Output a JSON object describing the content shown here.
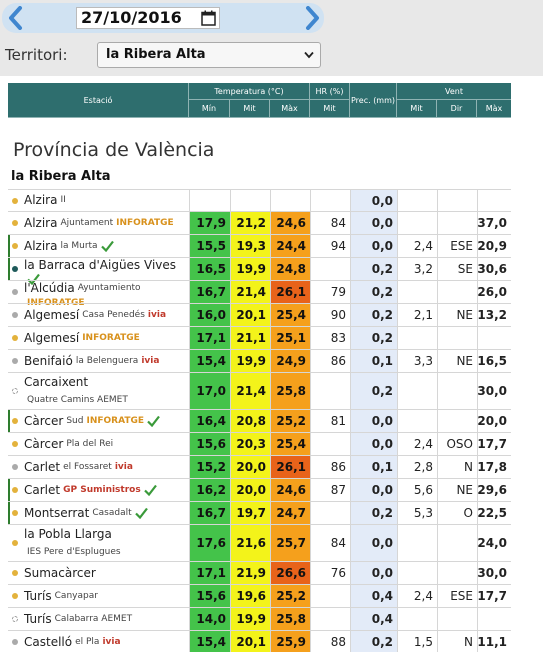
{
  "controls": {
    "date": "27/10/2016",
    "territori_label": "Territori:",
    "territori_value": "la Ribera Alta"
  },
  "header": {
    "estacio": "Estació",
    "temperatura": "Temperatura (°C)",
    "hr": "HR (%)",
    "prec": "Prec. (mm)",
    "vent": "Vent",
    "min": "Mín",
    "mit": "Mit",
    "max": "Màx",
    "hr_mit": "Mit",
    "vent_mit": "Mit",
    "vent_dir": "Dir",
    "vent_max": "Màx"
  },
  "province": "Província de València",
  "region": "la Ribera Alta",
  "colors": {
    "min": "#44c34a",
    "mit": "#f3f31a",
    "max_warm": "#f5a01c",
    "max_hot": "#e8631a",
    "prec": "#e3ebf8"
  },
  "rows": [
    {
      "name": "Alzira",
      "sub": "II",
      "tag": "",
      "tag_color": "",
      "check": false,
      "dot": "#e3b23c",
      "mark": "",
      "h": 22,
      "min": "",
      "mit": "",
      "max": "",
      "hot": false,
      "hr": "",
      "prec": "0,0",
      "vmit": "",
      "vdir": "",
      "vmax": ""
    },
    {
      "name": "Alzira",
      "sub": "Ajuntament",
      "tag": "INFORATGE",
      "tag_color": "#d8911c",
      "check": false,
      "dot": "#e3b23c",
      "mark": "",
      "h": 23,
      "min": "17,9",
      "mit": "21,2",
      "max": "24,6",
      "hot": false,
      "hr": "84",
      "prec": "0,0",
      "vmit": "",
      "vdir": "",
      "vmax": "37,0"
    },
    {
      "name": "Alzira",
      "sub": "la Murta",
      "tag": "",
      "tag_color": "",
      "check": true,
      "dot": "#e3b23c",
      "mark": "#2e7d2e",
      "h": 23,
      "min": "15,5",
      "mit": "19,3",
      "max": "24,4",
      "hot": false,
      "hr": "94",
      "prec": "0,0",
      "vmit": "2,4",
      "vdir": "ESE",
      "vmax": "20,9"
    },
    {
      "name": "la Barraca d'Aigües Vives",
      "sub": "",
      "tag": "",
      "tag_color": "",
      "check": true,
      "dot": "#1e5a5a",
      "mark": "#2e7d2e",
      "h": 23,
      "min": "16,5",
      "mit": "19,9",
      "max": "24,8",
      "hot": false,
      "hr": "",
      "prec": "0,2",
      "vmit": "3,2",
      "vdir": "SE",
      "vmax": "30,6"
    },
    {
      "name": "l'Alcúdia",
      "sub": "Ayuntamiento",
      "tag": "INFORATGE",
      "tag_color": "#d8911c",
      "check": false,
      "dot": "#aaaaaa",
      "mark": "",
      "h": 23,
      "min": "16,7",
      "mit": "21,4",
      "max": "26,1",
      "hot": true,
      "hr": "79",
      "prec": "0,2",
      "vmit": "",
      "vdir": "",
      "vmax": "26,0"
    },
    {
      "name": "Algemesí",
      "sub": "Casa Penedés",
      "tag": "ivia",
      "tag_color": "#c0392b",
      "check": false,
      "dot": "#aaaaaa",
      "mark": "",
      "h": 23,
      "min": "16,0",
      "mit": "20,1",
      "max": "25,4",
      "hot": false,
      "hr": "90",
      "prec": "0,2",
      "vmit": "2,1",
      "vdir": "NE",
      "vmax": "13,2"
    },
    {
      "name": "Algemesí",
      "sub": "",
      "tag": "INFORATGE",
      "tag_color": "#d8911c",
      "check": false,
      "dot": "#e3b23c",
      "mark": "",
      "h": 23,
      "min": "17,1",
      "mit": "21,1",
      "max": "25,1",
      "hot": false,
      "hr": "83",
      "prec": "0,2",
      "vmit": "",
      "vdir": "",
      "vmax": ""
    },
    {
      "name": "Benifaió",
      "sub": "la Belenguera",
      "tag": "ivia",
      "tag_color": "#c0392b",
      "check": false,
      "dot": "#aaaaaa",
      "mark": "",
      "h": 23,
      "min": "15,4",
      "mit": "19,9",
      "max": "24,9",
      "hot": false,
      "hr": "86",
      "prec": "0,1",
      "vmit": "3,3",
      "vdir": "NE",
      "vmax": "16,5"
    },
    {
      "name": "Carcaixent",
      "sub": "Quatre Camins AEMET",
      "tag": "",
      "tag_color": "",
      "check": false,
      "dot": "#ffffff",
      "mark": "",
      "h": 37,
      "min": "17,0",
      "mit": "21,4",
      "max": "25,8",
      "hot": false,
      "hr": "",
      "prec": "0,2",
      "vmit": "",
      "vdir": "",
      "vmax": "30,0"
    },
    {
      "name": "Càrcer",
      "sub": "Sud",
      "tag": "INFORATGE",
      "tag_color": "#d8911c",
      "check": true,
      "dot": "#e3b23c",
      "mark": "#2e7d2e",
      "h": 23,
      "min": "16,4",
      "mit": "20,8",
      "max": "25,2",
      "hot": false,
      "hr": "81",
      "prec": "0,0",
      "vmit": "",
      "vdir": "",
      "vmax": "20,0"
    },
    {
      "name": "Càrcer",
      "sub": "Pla del Rei",
      "tag": "",
      "tag_color": "",
      "check": false,
      "dot": "#e3b23c",
      "mark": "",
      "h": 23,
      "min": "15,6",
      "mit": "20,3",
      "max": "25,4",
      "hot": false,
      "hr": "",
      "prec": "0,0",
      "vmit": "2,4",
      "vdir": "OSO",
      "vmax": "17,7"
    },
    {
      "name": "Carlet",
      "sub": "el Fossaret",
      "tag": "ivia",
      "tag_color": "#c0392b",
      "check": false,
      "dot": "#aaaaaa",
      "mark": "",
      "h": 23,
      "min": "15,2",
      "mit": "20,0",
      "max": "26,1",
      "hot": true,
      "hr": "86",
      "prec": "0,1",
      "vmit": "2,8",
      "vdir": "N",
      "vmax": "17,8"
    },
    {
      "name": "Carlet",
      "sub": "",
      "tag": "GP Suministros",
      "tag_color": "#c0392b",
      "check": true,
      "dot": "#e3b23c",
      "mark": "#2e7d2e",
      "h": 23,
      "min": "16,2",
      "mit": "20,0",
      "max": "24,6",
      "hot": false,
      "hr": "87",
      "prec": "0,0",
      "vmit": "5,6",
      "vdir": "NE",
      "vmax": "29,6"
    },
    {
      "name": "Montserrat",
      "sub": "Casadalt",
      "tag": "",
      "tag_color": "",
      "check": true,
      "dot": "#e3b23c",
      "mark": "#2e7d2e",
      "h": 23,
      "min": "16,7",
      "mit": "19,7",
      "max": "24,7",
      "hot": false,
      "hr": "",
      "prec": "0,2",
      "vmit": "5,3",
      "vdir": "O",
      "vmax": "22,5"
    },
    {
      "name": "la Pobla Llarga",
      "sub": "IES Pere d'Esplugues",
      "tag": "",
      "tag_color": "",
      "check": false,
      "dot": "#e3b23c",
      "mark": "",
      "h": 37,
      "min": "17,6",
      "mit": "21,6",
      "max": "25,7",
      "hot": false,
      "hr": "84",
      "prec": "0,0",
      "vmit": "",
      "vdir": "",
      "vmax": "24,0"
    },
    {
      "name": "Sumacàrcer",
      "sub": "",
      "tag": "",
      "tag_color": "",
      "check": false,
      "dot": "#e3b23c",
      "mark": "",
      "h": 23,
      "min": "17,1",
      "mit": "21,9",
      "max": "26,6",
      "hot": true,
      "hr": "76",
      "prec": "0,0",
      "vmit": "",
      "vdir": "",
      "vmax": "30,0"
    },
    {
      "name": "Turís",
      "sub": "Canyapar",
      "tag": "",
      "tag_color": "",
      "check": false,
      "dot": "#e3b23c",
      "mark": "",
      "h": 23,
      "min": "15,6",
      "mit": "19,6",
      "max": "25,2",
      "hot": false,
      "hr": "",
      "prec": "0,4",
      "vmit": "2,4",
      "vdir": "ESE",
      "vmax": "17,7"
    },
    {
      "name": "Turís",
      "sub": "Calabarra AEMET",
      "tag": "",
      "tag_color": "",
      "check": false,
      "dot": "#ffffff",
      "mark": "",
      "h": 23,
      "min": "14,0",
      "mit": "19,9",
      "max": "25,8",
      "hot": false,
      "hr": "",
      "prec": "0,4",
      "vmit": "",
      "vdir": "",
      "vmax": ""
    },
    {
      "name": "Castelló",
      "sub": "el Pla",
      "tag": "ivia",
      "tag_color": "#c0392b",
      "check": false,
      "dot": "#aaaaaa",
      "mark": "",
      "h": 23,
      "min": "15,4",
      "mit": "20,1",
      "max": "25,9",
      "hot": false,
      "hr": "88",
      "prec": "0,2",
      "vmit": "1,5",
      "vdir": "N",
      "vmax": "11,1"
    }
  ]
}
